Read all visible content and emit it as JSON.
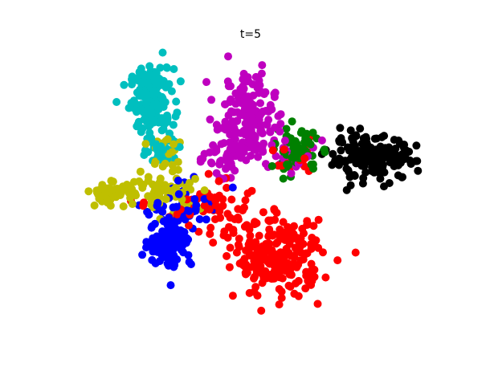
{
  "chart_data": {
    "type": "scatter",
    "title": "t=5",
    "xlabel": "",
    "ylabel": "",
    "axes_visible": false,
    "grid": false,
    "legend": "none",
    "xlim": [
      0,
      100
    ],
    "ylim": [
      0,
      100
    ],
    "point_radius_px": 5,
    "series": [
      {
        "color": "#00bfbf",
        "clusters": [
          {
            "cx": 22,
            "cy": 82,
            "sx": 3,
            "sy": 6,
            "n": 170
          },
          {
            "cx": 25,
            "cy": 64,
            "sx": 3,
            "sy": 3,
            "n": 30
          }
        ]
      },
      {
        "color": "#bf00bf",
        "clusters": [
          {
            "cx": 48,
            "cy": 74,
            "sx": 4,
            "sy": 9,
            "n": 190
          },
          {
            "cx": 41,
            "cy": 60,
            "sx": 4,
            "sy": 3,
            "n": 30
          },
          {
            "cx": 60,
            "cy": 60,
            "sx": 5,
            "sy": 4,
            "n": 20
          }
        ]
      },
      {
        "color": "#008000",
        "clusters": [
          {
            "cx": 62,
            "cy": 62,
            "sx": 3,
            "sy": 4,
            "n": 80
          }
        ]
      },
      {
        "color": "#000000",
        "clusters": [
          {
            "cx": 83,
            "cy": 60,
            "sx": 6,
            "sy": 4,
            "n": 170
          }
        ]
      },
      {
        "color": "#bfbf00",
        "clusters": [
          {
            "cx": 11,
            "cy": 47,
            "sx": 3,
            "sy": 2,
            "n": 60
          },
          {
            "cx": 26,
            "cy": 47,
            "sx": 5,
            "sy": 3,
            "n": 60
          },
          {
            "cx": 26,
            "cy": 62,
            "sx": 3,
            "sy": 4,
            "n": 30
          }
        ]
      },
      {
        "color": "#0000ff",
        "clusters": [
          {
            "cx": 27,
            "cy": 29,
            "sx": 3,
            "sy": 5,
            "n": 120
          },
          {
            "cx": 32,
            "cy": 42,
            "sx": 5,
            "sy": 4,
            "n": 50
          }
        ]
      },
      {
        "color": "#ff0000",
        "clusters": [
          {
            "cx": 57,
            "cy": 22,
            "sx": 6,
            "sy": 7,
            "n": 230
          },
          {
            "cx": 40,
            "cy": 40,
            "sx": 8,
            "sy": 5,
            "n": 70
          },
          {
            "cx": 62,
            "cy": 58,
            "sx": 3,
            "sy": 3,
            "n": 20
          }
        ]
      }
    ]
  }
}
